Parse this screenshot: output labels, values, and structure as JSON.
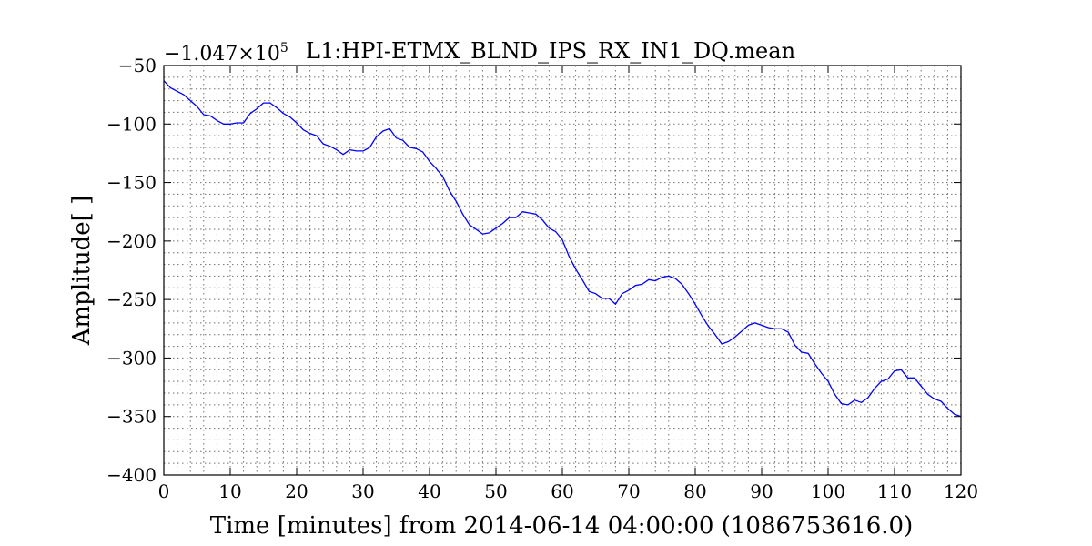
{
  "chart_data": {
    "type": "line",
    "title": "L1:HPI-ETMX_BLND_IPS_RX_IN1_DQ.mean",
    "offset_label": "−1.047×10",
    "offset_exponent": "5",
    "xlabel": "Time [minutes] from 2014-06-14 04:00:00 (1086753616.0)",
    "ylabel": "Amplitude[ ]",
    "xlim": [
      0,
      120
    ],
    "ylim": [
      -400,
      -50
    ],
    "xticks": [
      0,
      10,
      20,
      30,
      40,
      50,
      60,
      70,
      80,
      90,
      100,
      110,
      120
    ],
    "yticks": [
      -400,
      -350,
      -300,
      -250,
      -200,
      -150,
      -100,
      -50
    ],
    "xtick_labels": [
      "0",
      "10",
      "20",
      "30",
      "40",
      "50",
      "60",
      "70",
      "80",
      "90",
      "100",
      "110",
      "120"
    ],
    "ytick_labels": [
      "−400",
      "−350",
      "−300",
      "−250",
      "−200",
      "−150",
      "−100",
      "−50"
    ],
    "grid": true,
    "series": [
      {
        "color": "#0000ff",
        "x": [
          0,
          1,
          2,
          3,
          4,
          5,
          6,
          7,
          8,
          9,
          10,
          11,
          12,
          13,
          14,
          15,
          16,
          17,
          18,
          19,
          20,
          21,
          22,
          23,
          24,
          25,
          26,
          27,
          28,
          29,
          30,
          31,
          32,
          33,
          34,
          35,
          36,
          37,
          38,
          39,
          40,
          41,
          42,
          43,
          44,
          45,
          46,
          47,
          48,
          49,
          50,
          51,
          52,
          53,
          54,
          55,
          56,
          57,
          58,
          59,
          60,
          61,
          62,
          63,
          64,
          65,
          66,
          67,
          68,
          69,
          70,
          71,
          72,
          73,
          74,
          75,
          76,
          77,
          78,
          79,
          80,
          81,
          82,
          83,
          84,
          85,
          86,
          87,
          88,
          89,
          90,
          91,
          92,
          93,
          94,
          95,
          96,
          97,
          98,
          99,
          100,
          101,
          102,
          103,
          104,
          105,
          106,
          107,
          108,
          109,
          110,
          111,
          112,
          113,
          114,
          115,
          116,
          117,
          118,
          119,
          120
        ],
        "y": [
          -63,
          -69,
          -72,
          -75,
          -80,
          -85,
          -92,
          -93,
          -97,
          -100,
          -100,
          -99,
          -99,
          -91,
          -87,
          -82,
          -82,
          -86,
          -91,
          -94,
          -99,
          -105,
          -108,
          -110,
          -117,
          -119,
          -122,
          -126,
          -122,
          -123,
          -123,
          -120,
          -111,
          -106,
          -104,
          -112,
          -114,
          -120,
          -121,
          -124,
          -132,
          -138,
          -145,
          -157,
          -166,
          -177,
          -186,
          -190,
          -194,
          -193,
          -189,
          -185,
          -180,
          -180,
          -175,
          -176,
          -177,
          -182,
          -189,
          -192,
          -199,
          -213,
          -224,
          -233,
          -243,
          -245,
          -249,
          -249,
          -254,
          -245,
          -242,
          -238,
          -237,
          -233,
          -234,
          -231,
          -230,
          -232,
          -237,
          -245,
          -254,
          -264,
          -273,
          -280,
          -288,
          -286,
          -282,
          -277,
          -272,
          -270,
          -272,
          -274,
          -275,
          -275,
          -278,
          -289,
          -295,
          -296,
          -305,
          -313,
          -320,
          -331,
          -339,
          -340,
          -336,
          -338,
          -334,
          -326,
          -320,
          -318,
          -311,
          -310,
          -317,
          -317,
          -324,
          -331,
          -335,
          -337,
          -343,
          -348,
          -350
        ]
      }
    ]
  }
}
